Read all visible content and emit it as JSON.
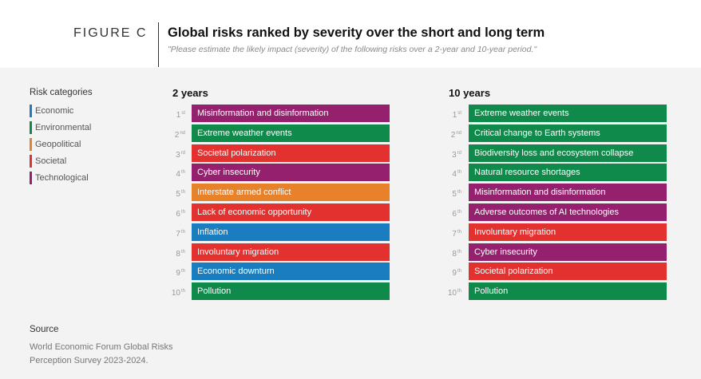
{
  "header": {
    "figure_label": "FIGURE C",
    "title": "Global risks ranked by severity over the short and long term",
    "subtitle": "\"Please estimate the likely impact (severity) of the following risks over a 2-year and 10-year period.\""
  },
  "legend": {
    "title": "Risk categories",
    "items": [
      {
        "label": "Economic",
        "color": "#1a7dc0"
      },
      {
        "label": "Environmental",
        "color": "#0f8a4a"
      },
      {
        "label": "Geopolitical",
        "color": "#e8822a"
      },
      {
        "label": "Societal",
        "color": "#e3312f"
      },
      {
        "label": "Technological",
        "color": "#94206e"
      }
    ]
  },
  "columns": [
    {
      "title": "2 years",
      "rows": [
        {
          "rank": "1",
          "suffix": "st",
          "label": "Misinformation and disinformation",
          "category": "Technological",
          "color": "#94206e"
        },
        {
          "rank": "2",
          "suffix": "nd",
          "label": "Extreme weather events",
          "category": "Environmental",
          "color": "#0f8a4a"
        },
        {
          "rank": "3",
          "suffix": "rd",
          "label": "Societal polarization",
          "category": "Societal",
          "color": "#e3312f"
        },
        {
          "rank": "4",
          "suffix": "th",
          "label": "Cyber insecurity",
          "category": "Technological",
          "color": "#94206e"
        },
        {
          "rank": "5",
          "suffix": "th",
          "label": "Interstate armed conflict",
          "category": "Geopolitical",
          "color": "#e8822a"
        },
        {
          "rank": "6",
          "suffix": "th",
          "label": "Lack of economic opportunity",
          "category": "Societal",
          "color": "#e3312f"
        },
        {
          "rank": "7",
          "suffix": "th",
          "label": "Inflation",
          "category": "Economic",
          "color": "#1a7dc0"
        },
        {
          "rank": "8",
          "suffix": "th",
          "label": "Involuntary migration",
          "category": "Societal",
          "color": "#e3312f"
        },
        {
          "rank": "9",
          "suffix": "th",
          "label": "Economic downturn",
          "category": "Economic",
          "color": "#1a7dc0"
        },
        {
          "rank": "10",
          "suffix": "th",
          "label": "Pollution",
          "category": "Environmental",
          "color": "#0f8a4a"
        }
      ]
    },
    {
      "title": "10 years",
      "rows": [
        {
          "rank": "1",
          "suffix": "st",
          "label": "Extreme weather events",
          "category": "Environmental",
          "color": "#0f8a4a"
        },
        {
          "rank": "2",
          "suffix": "nd",
          "label": "Critical change to Earth systems",
          "category": "Environmental",
          "color": "#0f8a4a"
        },
        {
          "rank": "3",
          "suffix": "rd",
          "label": "Biodiversity loss and ecosystem collapse",
          "category": "Environmental",
          "color": "#0f8a4a"
        },
        {
          "rank": "4",
          "suffix": "th",
          "label": "Natural resource shortages",
          "category": "Environmental",
          "color": "#0f8a4a"
        },
        {
          "rank": "5",
          "suffix": "th",
          "label": "Misinformation and disinformation",
          "category": "Technological",
          "color": "#94206e"
        },
        {
          "rank": "6",
          "suffix": "th",
          "label": "Adverse outcomes of AI technologies",
          "category": "Technological",
          "color": "#94206e"
        },
        {
          "rank": "7",
          "suffix": "th",
          "label": "Involuntary migration",
          "category": "Societal",
          "color": "#e3312f"
        },
        {
          "rank": "8",
          "suffix": "th",
          "label": "Cyber insecurity",
          "category": "Technological",
          "color": "#94206e"
        },
        {
          "rank": "9",
          "suffix": "th",
          "label": "Societal polarization",
          "category": "Societal",
          "color": "#e3312f"
        },
        {
          "rank": "10",
          "suffix": "th",
          "label": "Pollution",
          "category": "Environmental",
          "color": "#0f8a4a"
        }
      ]
    }
  ],
  "source": {
    "title": "Source",
    "text": "World Economic Forum Global Risks Perception Survey 2023-2024."
  }
}
